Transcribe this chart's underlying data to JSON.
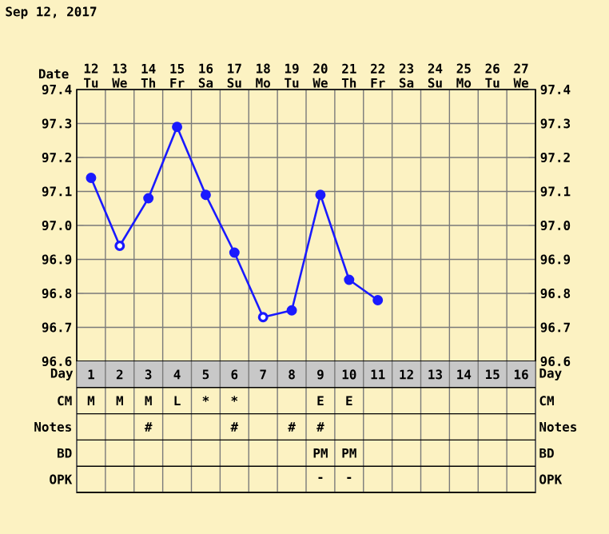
{
  "chart_data": [
    {
      "type": "line",
      "title": "Sep 12, 2017",
      "xlabel": "Date",
      "categories": [
        "12 Tu",
        "13 We",
        "14 Th",
        "15 Fr",
        "16 Sa",
        "17 Su",
        "18 Mo",
        "19 Tu",
        "20 We",
        "21 Th",
        "22 Fr",
        "23 Sa",
        "24 Su",
        "25 Mo",
        "26 Tu",
        "27 We"
      ],
      "ylim": [
        96.6,
        97.4
      ],
      "yticks": [
        96.6,
        96.7,
        96.8,
        96.9,
        {
          "value": 97.0,
          "label": "97.0"
        },
        97.1,
        97.2,
        97.3,
        97.4
      ],
      "y2lim": [
        96.6,
        97.4
      ],
      "y2ticks": [
        96.6,
        96.7,
        96.8,
        96.9,
        {
          "value": 97.0,
          "label": "97.0"
        },
        97.1,
        97.2,
        97.3,
        97.4
      ],
      "grid": true,
      "marker": "circle",
      "line_style": "solid",
      "series": [
        {
          "color": "#1a1aff",
          "values": [
            97.14,
            96.94,
            97.08,
            97.29,
            97.09,
            96.92,
            96.73,
            96.75,
            97.09,
            96.84,
            96.78,
            null,
            null,
            null,
            null,
            null
          ]
        },
        {
          "type": "scatter",
          "color": "#ffffff",
          "values": [
            null,
            96.94,
            null,
            null,
            null,
            null,
            96.73,
            null,
            null,
            null,
            null,
            null,
            null,
            null,
            null,
            null
          ]
        }
      ]
    },
    {
      "type": "heatmap",
      "xlabel": "Day",
      "categories": [
        "1",
        "2",
        "3",
        "4",
        "5",
        "6",
        "7",
        "8",
        "9",
        "10",
        "11",
        "12",
        "13",
        "14",
        "15",
        "16"
      ],
      "y_categories": [
        "CM",
        "Notes",
        "BD",
        "OPK"
      ],
      "y2_categories": [
        "CM",
        "Notes",
        "BD",
        "OPK"
      ],
      "cells": [
        [
          null,
          null,
          null,
          null,
          null,
          null,
          null,
          null,
          null,
          null,
          null,
          null,
          null,
          null,
          null,
          null
        ],
        [
          null,
          null,
          null,
          null,
          null,
          null,
          null,
          null,
          null,
          null,
          null,
          null,
          null,
          null,
          null,
          null
        ],
        [
          null,
          null,
          null,
          null,
          null,
          null,
          null,
          null,
          null,
          null,
          null,
          null,
          null,
          null,
          null,
          null
        ],
        [
          null,
          null,
          null,
          null,
          null,
          null,
          null,
          null,
          null,
          null,
          null,
          null,
          null,
          null,
          null,
          null
        ]
      ],
      "cell_labels": [
        [
          "M",
          "M",
          "M",
          "L",
          "*",
          "*",
          null,
          null,
          "E",
          "E",
          null,
          null,
          null,
          null,
          null,
          null
        ],
        [
          null,
          null,
          "#",
          null,
          null,
          "#",
          null,
          "#",
          "#",
          null,
          null,
          null,
          null,
          null,
          null,
          null
        ],
        [
          null,
          null,
          null,
          null,
          null,
          null,
          null,
          null,
          "PM",
          "PM",
          null,
          null,
          null,
          null,
          null,
          null
        ],
        [
          null,
          null,
          null,
          null,
          null,
          null,
          null,
          null,
          "-",
          "-",
          null,
          null,
          null,
          null,
          null,
          null
        ]
      ]
    }
  ]
}
